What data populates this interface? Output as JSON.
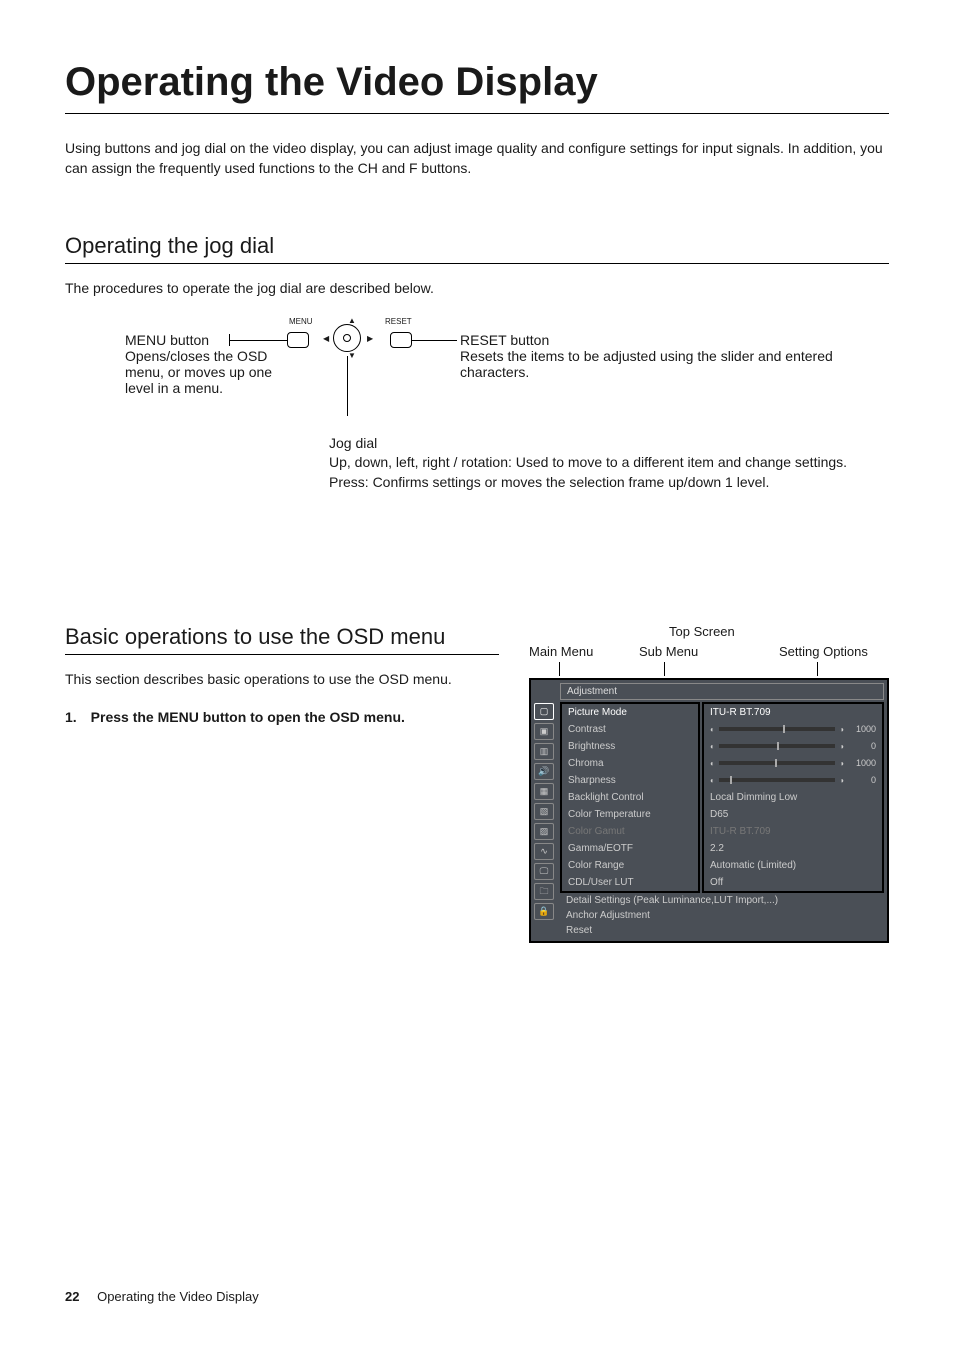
{
  "page": {
    "title": "Operating the Video Display",
    "intro": "Using buttons and jog dial on the video display, you can adjust image quality and configure settings for input signals. In addition, you can assign the frequently used functions to the CH and F buttons.",
    "footer_page": "22",
    "footer_text": "Operating the Video Display"
  },
  "jog": {
    "heading": "Operating the jog dial",
    "desc": "The procedures to operate the jog dial are described below.",
    "menu_btn_label": "MENU",
    "reset_btn_label": "RESET",
    "menu_title": "MENU button",
    "menu_body": "Opens/closes the OSD menu, or moves up one level in a menu.",
    "reset_title": "RESET button",
    "reset_body": "Resets the items to be adjusted using the slider and entered characters.",
    "jog_title": "Jog dial",
    "jog_line1": "Up, down, left, right / rotation: Used to move to a different item and change settings.",
    "jog_line2": "Press: Confirms settings or moves the selection frame up/down 1 level."
  },
  "osd": {
    "heading": "Basic operations to use the OSD menu",
    "desc": "This section describes basic operations to use the OSD menu.",
    "step1": "1. Press the MENU button to open the OSD menu.",
    "labels": {
      "top": "Top Screen",
      "main": "Main Menu",
      "sub": "Sub Menu",
      "opt": "Setting Options"
    },
    "menu": {
      "header": "Adjustment",
      "sidebar_icons": [
        "▢",
        "▣",
        "▥",
        "🔊",
        "▦",
        "▧",
        "▨",
        "∿",
        "🖵",
        "🗀",
        "🔒"
      ],
      "rows": [
        {
          "sub": "Picture Mode",
          "opt": "ITU-R BT.709",
          "sel": true,
          "type": "text"
        },
        {
          "sub": "Contrast",
          "opt_val": "1000",
          "type": "slider",
          "pos": 55
        },
        {
          "sub": "Brightness",
          "opt_val": "0",
          "type": "slider",
          "pos": 50
        },
        {
          "sub": "Chroma",
          "opt_val": "1000",
          "type": "slider",
          "pos": 48
        },
        {
          "sub": "Sharpness",
          "opt_val": "0",
          "type": "slider",
          "pos": 10
        },
        {
          "sub": "Backlight Control",
          "opt": "Local Dimming Low",
          "type": "text"
        },
        {
          "sub": "Color Temperature",
          "opt": "D65",
          "type": "text"
        },
        {
          "sub": "Color Gamut",
          "opt": "ITU-R BT.709",
          "type": "text",
          "dim": true
        },
        {
          "sub": "Gamma/EOTF",
          "opt": "2.2",
          "type": "text"
        },
        {
          "sub": "Color Range",
          "opt": "Automatic (Limited)",
          "type": "text"
        },
        {
          "sub": "CDL/User LUT",
          "opt": "Off",
          "type": "text"
        }
      ],
      "full_row": "Detail Settings (Peak Luminance,LUT Import,...)",
      "tail_rows": [
        "Anchor Adjustment",
        "Reset"
      ],
      "colors": {
        "box_bg": "#4a4f56",
        "text": "#cccccc",
        "text_sel": "#ffffff",
        "text_dim": "#777777",
        "border": "#000000",
        "icon_border": "#888888"
      }
    }
  }
}
